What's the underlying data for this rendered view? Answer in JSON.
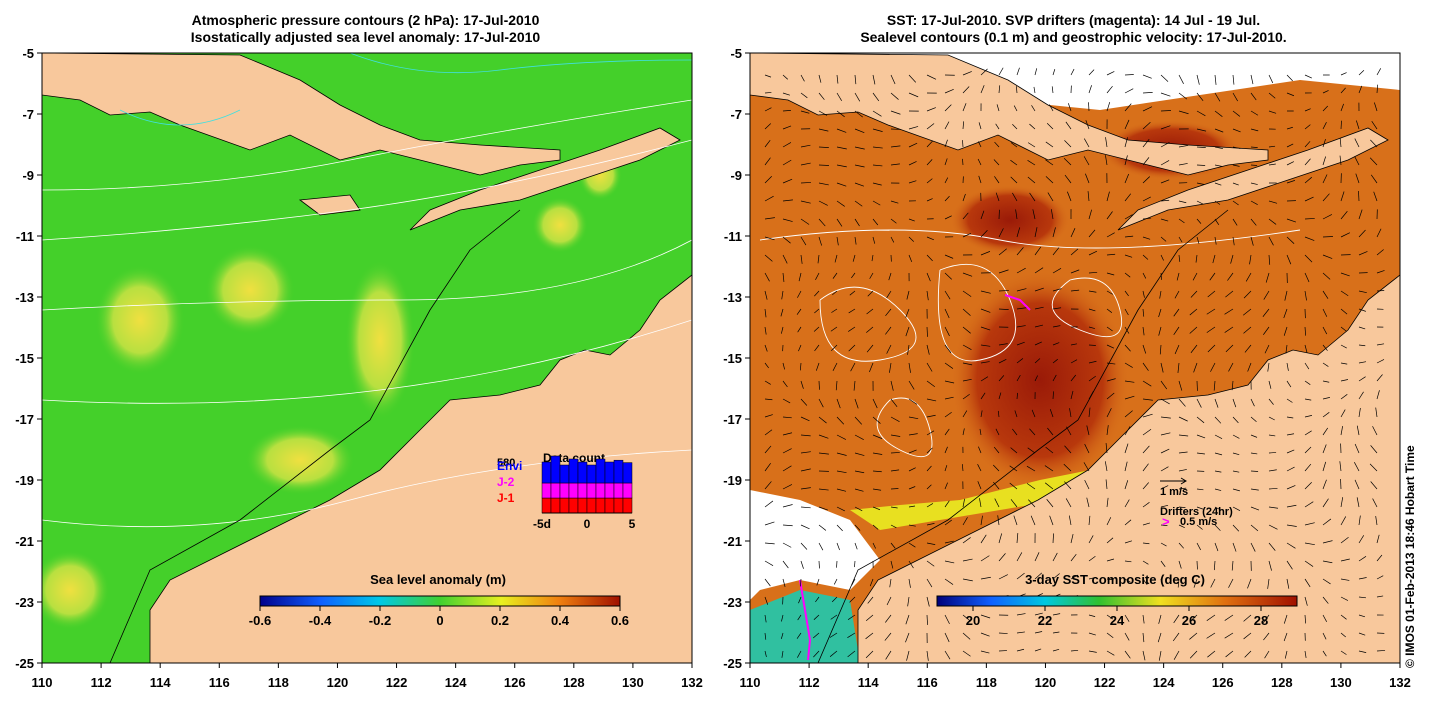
{
  "left_panel": {
    "title_line1": "Atmospheric pressure contours (2 hPa): 17-Jul-2010",
    "title_line2": "Isostatically adjusted sea level anomaly: 17-Jul-2010",
    "colorbar": {
      "label": "Sea level anomaly (m)",
      "ticks": [
        "-0.6",
        "-0.4",
        "-0.2",
        "0",
        "0.2",
        "0.4",
        "0.6"
      ],
      "range": [
        -0.6,
        0.6
      ]
    },
    "inset": {
      "title": "Data count",
      "max_label": "580",
      "legend": [
        {
          "label": "Envi",
          "color": "#0000ff"
        },
        {
          "label": "J-2",
          "color": "#ff00ff"
        },
        {
          "label": "J-1",
          "color": "#ff0000"
        }
      ],
      "x_ticks": [
        "-5d",
        "0",
        "5"
      ],
      "bars": [
        {
          "j1": 0.25,
          "j2": 0.25,
          "envi": 0.35
        },
        {
          "j1": 0.25,
          "j2": 0.25,
          "envi": 0.45
        },
        {
          "j1": 0.25,
          "j2": 0.25,
          "envi": 0.3
        },
        {
          "j1": 0.25,
          "j2": 0.25,
          "envi": 0.4
        },
        {
          "j1": 0.25,
          "j2": 0.25,
          "envi": 0.35
        },
        {
          "j1": 0.25,
          "j2": 0.25,
          "envi": 0.3
        },
        {
          "j1": 0.25,
          "j2": 0.25,
          "envi": 0.4
        },
        {
          "j1": 0.25,
          "j2": 0.25,
          "envi": 0.35
        },
        {
          "j1": 0.25,
          "j2": 0.25,
          "envi": 0.38
        },
        {
          "j1": 0.25,
          "j2": 0.25,
          "envi": 0.34
        }
      ]
    }
  },
  "right_panel": {
    "title_line1": "SST: 17-Jul-2010. SVP drifters (magenta): 14 Jul - 19 Jul.",
    "title_line2": "Sealevel contours (0.1 m) and geostrophic velocity: 17-Jul-2010.",
    "colorbar": {
      "label": "3-day SST composite (deg C)",
      "ticks": [
        "20",
        "22",
        "24",
        "26",
        "28"
      ],
      "range": [
        19,
        29
      ]
    },
    "velocity_legend": "1 m/s",
    "drifter_legend_title": "Drifters (24hr)",
    "drifter_legend_value": "0.5 m/s",
    "drifter_marker": ">"
  },
  "axes": {
    "x_ticks": [
      "110",
      "112",
      "114",
      "116",
      "118",
      "120",
      "122",
      "124",
      "126",
      "128",
      "130",
      "132"
    ],
    "y_ticks": [
      "-5",
      "-7",
      "-9",
      "-11",
      "-13",
      "-15",
      "-17",
      "-19",
      "-21",
      "-23",
      "-25"
    ],
    "lon_range": [
      110,
      132
    ],
    "lat_range": [
      -25,
      -5
    ]
  },
  "credit": "© IMOS 01-Feb-2013 18:46 Hobart Time",
  "colors": {
    "land": "#f8c89c",
    "ocean_green": "#44d02a",
    "sst_warm": "#d8701a",
    "sst_hot": "#a82a0a"
  }
}
